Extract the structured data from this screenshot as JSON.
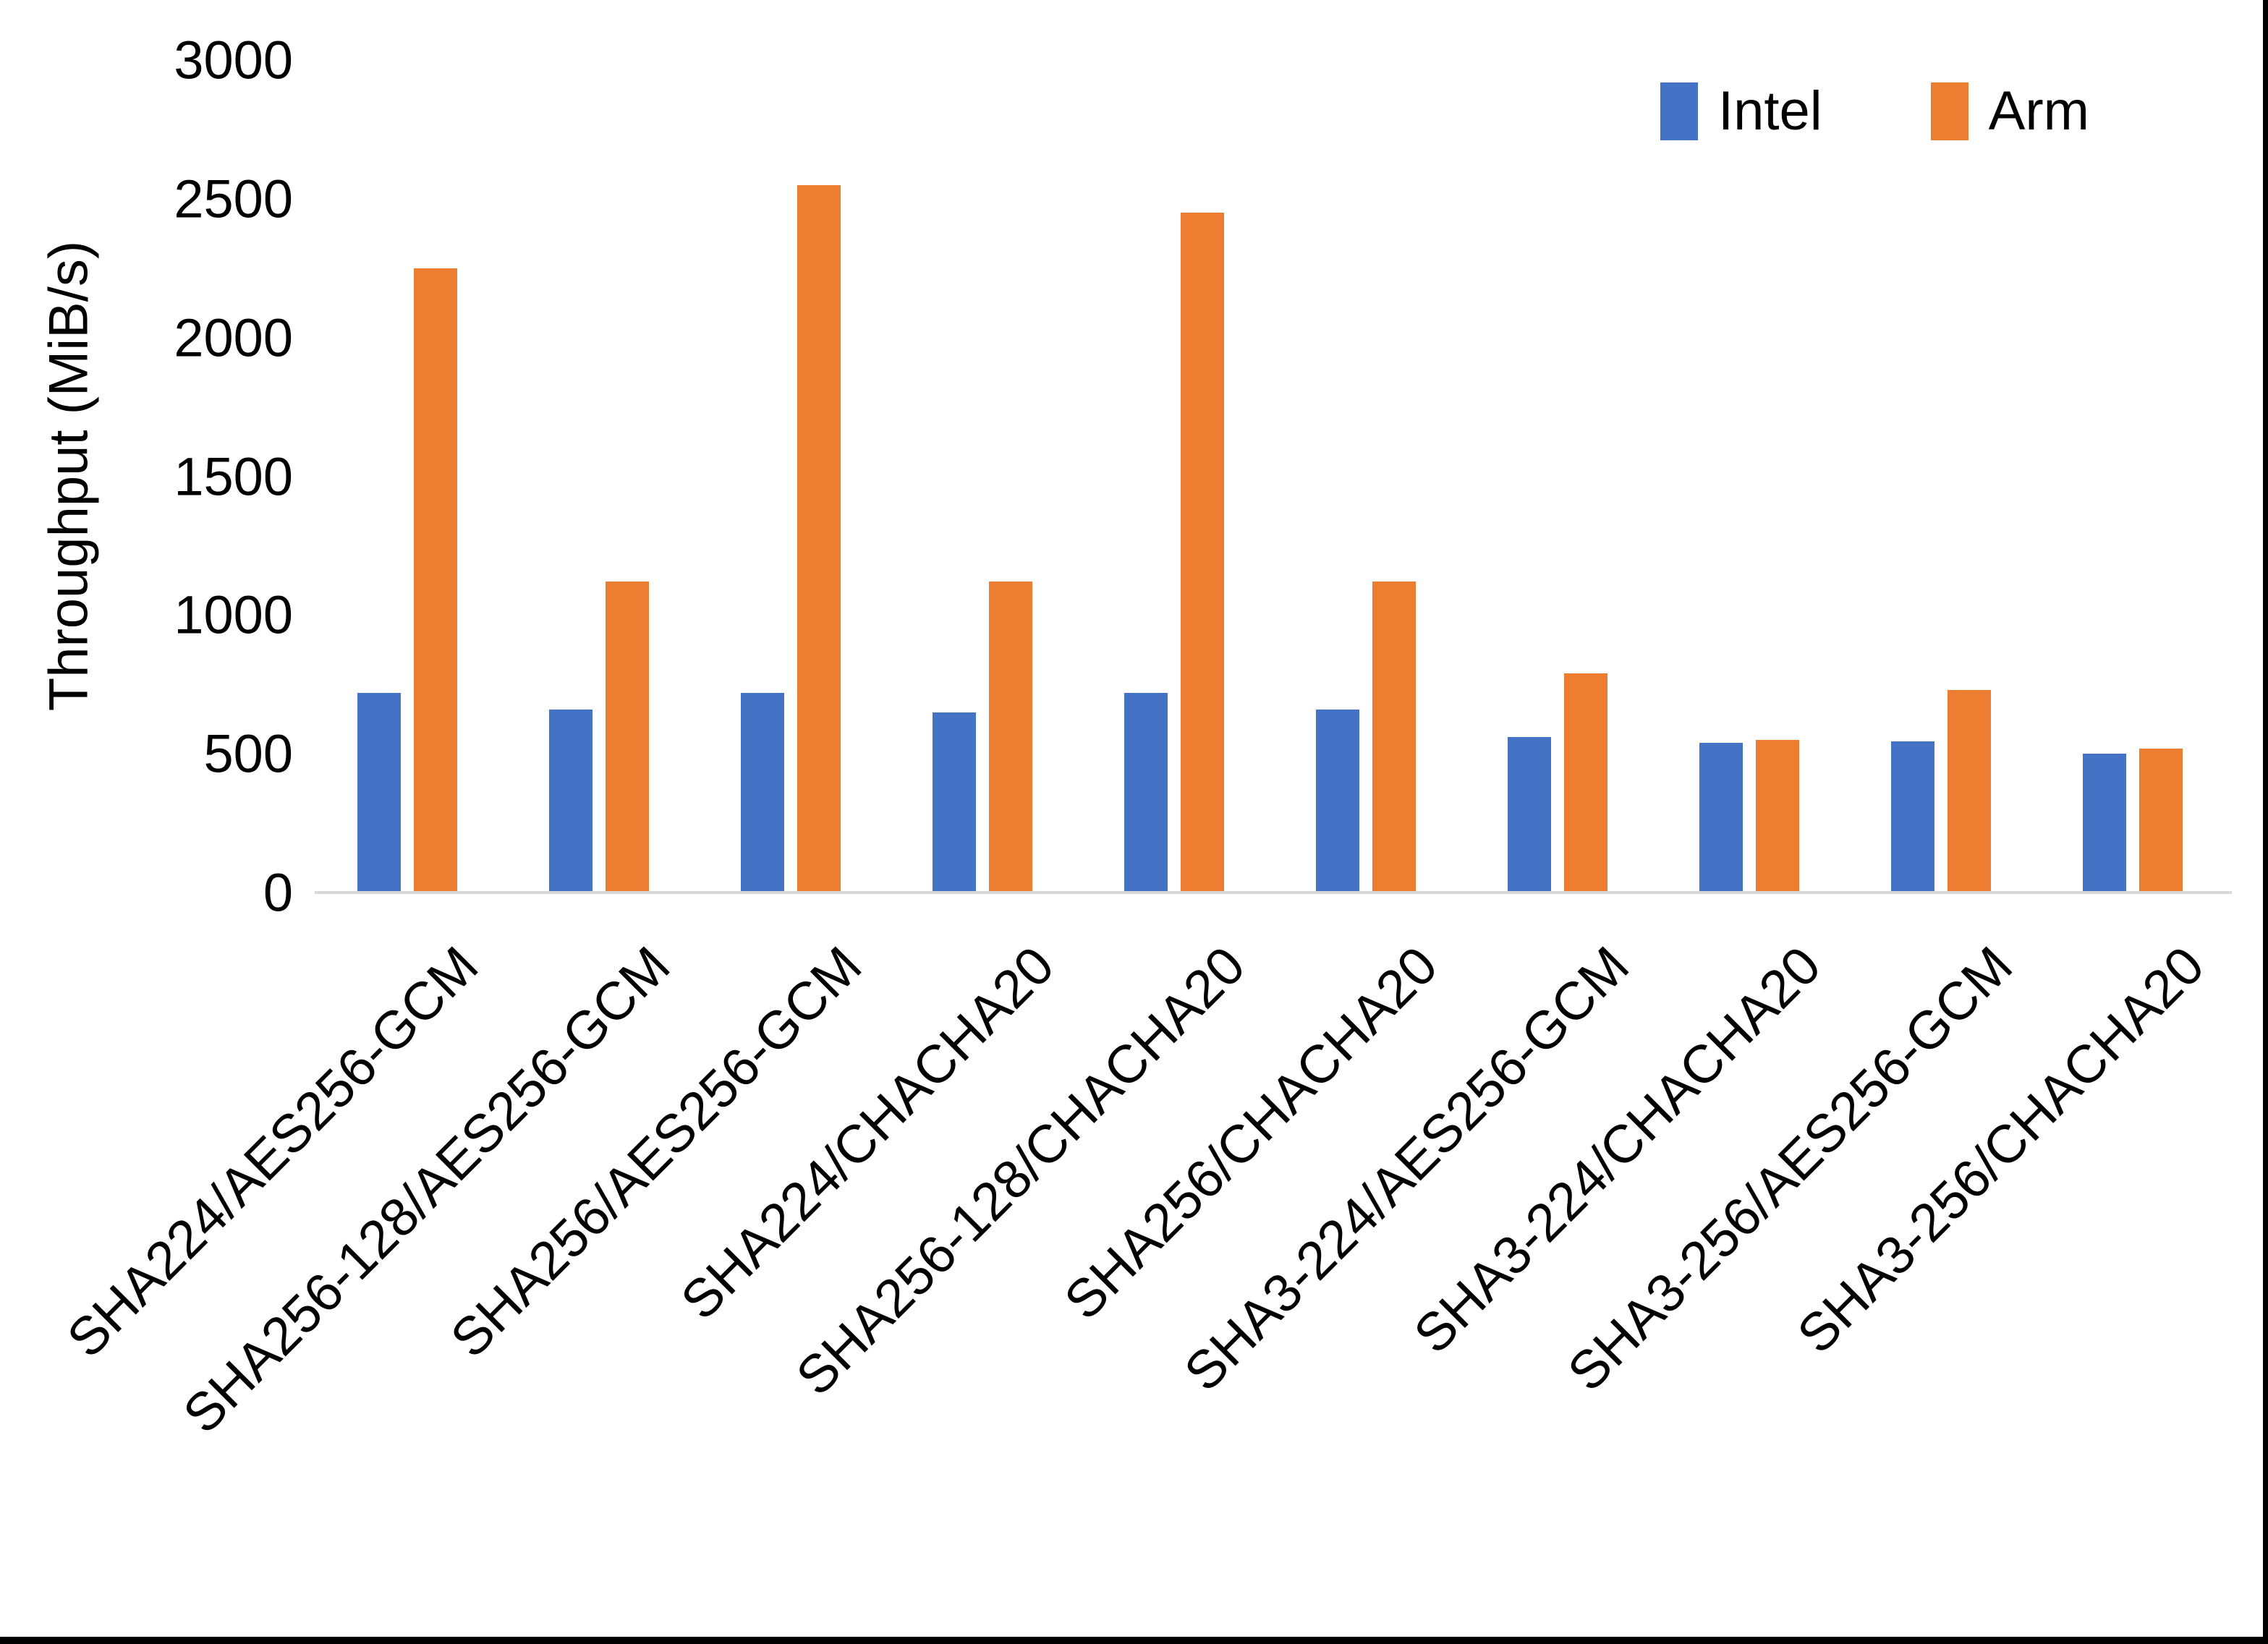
{
  "figure": {
    "background": "#ffffff",
    "page_edge_color": "#000000",
    "axis_line_color": "#d9d9d9",
    "text_color": "#000000"
  },
  "chart_data": {
    "type": "bar",
    "title": "",
    "xlabel": "",
    "ylabel": "Throughput (MiB/s)",
    "ylim": [
      0,
      3000
    ],
    "yticks": [
      0,
      500,
      1000,
      1500,
      2000,
      2500,
      3000
    ],
    "grid": false,
    "legend_position": "top-right",
    "x_label_rotation_deg": 45,
    "categories": [
      "SHA224/AES256-GCM",
      "SHA256-128/AES256-GCM",
      "SHA256/AES256-GCM",
      "SHA224/CHACHA20",
      "SHA256-128/CHACHA20",
      "SHA256/CHACHA20",
      "SHA3-224/AES256-GCM",
      "SHA3-224/CHACHA20",
      "SHA3-256/AES256-GCM",
      "SHA3-256/CHACHA20"
    ],
    "series": [
      {
        "name": "Intel",
        "color": "#4472c4",
        "values": [
          720,
          660,
          720,
          650,
          720,
          660,
          560,
          540,
          545,
          500
        ]
      },
      {
        "name": "Arm",
        "color": "#ed7d31",
        "values": [
          2250,
          1120,
          2550,
          1120,
          2450,
          1120,
          790,
          550,
          730,
          520
        ]
      }
    ]
  }
}
